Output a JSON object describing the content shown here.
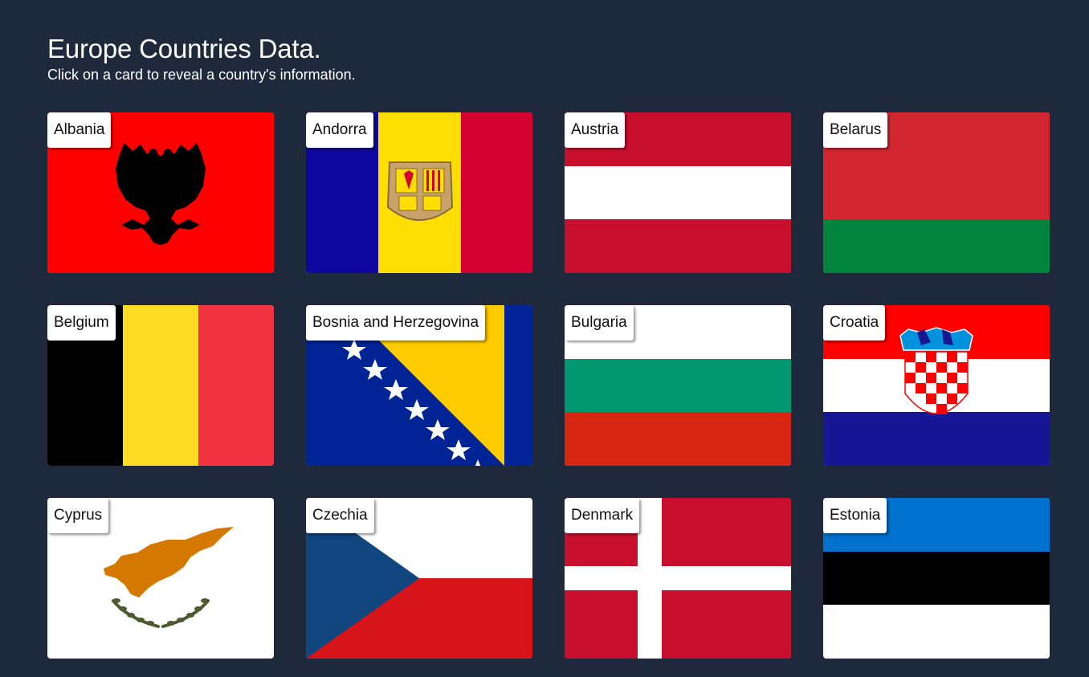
{
  "header": {
    "title": "Europe Countries Data.",
    "subtitle": "Click on a card to reveal a country's information."
  },
  "countries": [
    {
      "name": "Albania",
      "flag": "albania-flag",
      "colors": [
        "#ff0000",
        "#000000"
      ]
    },
    {
      "name": "Andorra",
      "flag": "andorra-flag",
      "colors": [
        "#10069f",
        "#fedd00",
        "#d50032"
      ]
    },
    {
      "name": "Austria",
      "flag": "austria-flag",
      "colors": [
        "#c8102e",
        "#ffffff",
        "#c8102e"
      ]
    },
    {
      "name": "Belarus",
      "flag": "belarus-flag",
      "colors": [
        "#d22730",
        "#00843d"
      ]
    },
    {
      "name": "Belgium",
      "flag": "belgium-flag",
      "colors": [
        "#000000",
        "#fdda24",
        "#ef3340"
      ]
    },
    {
      "name": "Bosnia and Herzegovina",
      "flag": "bosnia-flag",
      "colors": [
        "#002395",
        "#fecb00",
        "#ffffff"
      ]
    },
    {
      "name": "Bulgaria",
      "flag": "bulgaria-flag",
      "colors": [
        "#ffffff",
        "#00966e",
        "#d62612"
      ]
    },
    {
      "name": "Croatia",
      "flag": "croatia-flag",
      "colors": [
        "#ff0000",
        "#ffffff",
        "#171796"
      ]
    },
    {
      "name": "Cyprus",
      "flag": "cyprus-flag",
      "colors": [
        "#ffffff",
        "#d57800",
        "#4e5b31"
      ]
    },
    {
      "name": "Czechia",
      "flag": "czechia-flag",
      "colors": [
        "#ffffff",
        "#d7141a",
        "#11457e"
      ]
    },
    {
      "name": "Denmark",
      "flag": "denmark-flag",
      "colors": [
        "#c8102e",
        "#ffffff"
      ]
    },
    {
      "name": "Estonia",
      "flag": "estonia-flag",
      "colors": [
        "#0072ce",
        "#000000",
        "#ffffff"
      ]
    }
  ]
}
